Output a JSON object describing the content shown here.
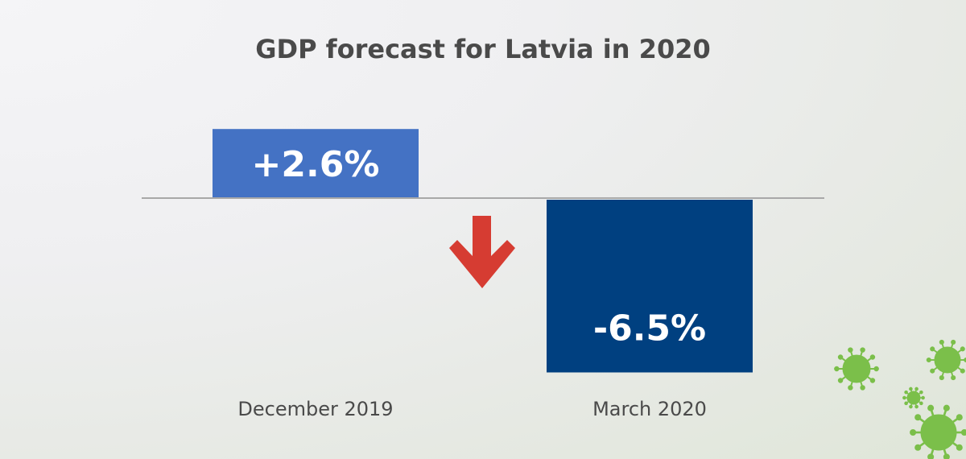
{
  "title": "GDP forecast for Latvia in 2020",
  "chart_data": {
    "type": "bar",
    "title": "GDP forecast for Latvia in 2020",
    "categories": [
      "December 2019",
      "March 2020"
    ],
    "values": [
      2.6,
      -6.5
    ],
    "value_labels": [
      "+2.6%",
      "-6.5%"
    ],
    "xlabel": "",
    "ylabel": "",
    "ylim": [
      -6.5,
      2.6
    ],
    "grid": false,
    "legend": "none",
    "colors": {
      "positive": "#4472c4",
      "negative": "#004080",
      "arrow": "#d63c32",
      "virus": "#7bbf4a",
      "axis": "#a8a8a8"
    }
  }
}
